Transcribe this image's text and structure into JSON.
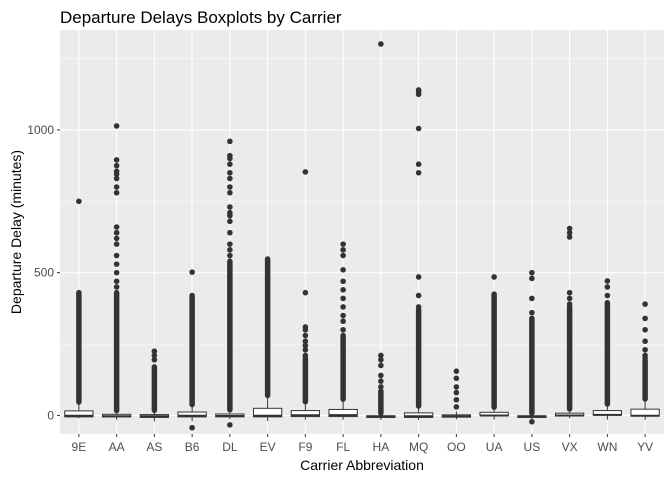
{
  "chart_data": {
    "type": "boxplot",
    "title": "Departure Delays Boxplots by Carrier",
    "xlabel": "Carrier Abbreviation",
    "ylabel": "Departure Delay (minutes)",
    "ylim": [
      -65,
      1350
    ],
    "yticks": [
      0,
      500,
      1000
    ],
    "grid": true,
    "legend": "none",
    "colors": {
      "panel": "#ebebeb",
      "grid_major": "#ffffff",
      "points": "#333333",
      "box_fill": "#ffffff",
      "box_line": "#333333",
      "text": "#4d4d4d",
      "title": "#000000"
    },
    "series": [
      {
        "name": "9E",
        "box": {
          "min": -10,
          "q1": -5,
          "median": -1,
          "q3": 16,
          "max": 47
        },
        "dense_outliers": [
          47,
          430
        ],
        "outliers": [
          750
        ]
      },
      {
        "name": "AA",
        "box": {
          "min": -15,
          "q1": -5,
          "median": -3,
          "q3": 4,
          "max": 17
        },
        "dense_outliers": [
          17,
          430
        ],
        "outliers": [
          450,
          470,
          500,
          530,
          560,
          600,
          620,
          640,
          660,
          780,
          800,
          830,
          845,
          855,
          875,
          895,
          1014
        ]
      },
      {
        "name": "AS",
        "box": {
          "min": -21,
          "q1": -7,
          "median": -3,
          "q3": 3,
          "max": 18
        },
        "dense_outliers": [
          18,
          170
        ],
        "outliers": [
          195,
          210,
          225
        ]
      },
      {
        "name": "B6",
        "box": {
          "min": -20,
          "q1": -5,
          "median": -1,
          "q3": 12,
          "max": 38
        },
        "dense_outliers": [
          38,
          420
        ],
        "outliers": [
          -43,
          502
        ]
      },
      {
        "name": "DL",
        "box": {
          "min": -13,
          "q1": -5,
          "median": -2,
          "q3": 5,
          "max": 20
        },
        "dense_outliers": [
          20,
          540
        ],
        "outliers": [
          -33,
          560,
          580,
          600,
          640,
          680,
          700,
          710,
          730,
          780,
          800,
          830,
          850,
          880,
          900,
          910,
          960
        ]
      },
      {
        "name": "EV",
        "box": {
          "min": -20,
          "q1": -5,
          "median": -1,
          "q3": 25,
          "max": 70
        },
        "dense_outliers": [
          70,
          548
        ]
      },
      {
        "name": "F9",
        "box": {
          "min": -15,
          "q1": -4,
          "median": 0.5,
          "q3": 17,
          "max": 48
        },
        "dense_outliers": [
          48,
          200
        ],
        "outliers": [
          210,
          230,
          245,
          260,
          280,
          300,
          310,
          430,
          853
        ]
      },
      {
        "name": "FL",
        "box": {
          "min": -15,
          "q1": -4,
          "median": 1,
          "q3": 21,
          "max": 57
        },
        "dense_outliers": [
          57,
          280
        ],
        "outliers": [
          300,
          330,
          350,
          380,
          410,
          440,
          470,
          510,
          560,
          580,
          600
        ]
      },
      {
        "name": "HA",
        "box": {
          "min": -16,
          "q1": -7,
          "median": -4,
          "q3": -1,
          "max": 8
        },
        "dense_outliers": [
          8,
          85
        ],
        "outliers": [
          100,
          120,
          140,
          175,
          195,
          210,
          1301
        ]
      },
      {
        "name": "MQ",
        "box": {
          "min": -16,
          "q1": -7,
          "median": -3,
          "q3": 9,
          "max": 33
        },
        "dense_outliers": [
          33,
          370
        ],
        "outliers": [
          380,
          420,
          485,
          850,
          880,
          1005,
          1125,
          1135,
          1140
        ]
      },
      {
        "name": "OO",
        "box": {
          "min": -14,
          "q1": -6,
          "median": -3,
          "q3": 2,
          "max": 14
        },
        "dense_outliers": [],
        "outliers": [
          30,
          55,
          80,
          100,
          130,
          155
        ]
      },
      {
        "name": "UA",
        "box": {
          "min": -15,
          "q1": -1,
          "median": 0,
          "q3": 11,
          "max": 29
        },
        "dense_outliers": [
          29,
          425
        ],
        "outliers": [
          485
        ]
      },
      {
        "name": "US",
        "box": {
          "min": -15,
          "q1": -7,
          "median": -4,
          "q3": -1,
          "max": 8
        },
        "dense_outliers": [
          8,
          340
        ],
        "outliers": [
          -22,
          360,
          410,
          480,
          500
        ]
      },
      {
        "name": "VX",
        "box": {
          "min": -10,
          "q1": -2,
          "median": 0,
          "q3": 8,
          "max": 23
        },
        "dense_outliers": [
          23,
          380
        ],
        "outliers": [
          390,
          410,
          430,
          625,
          640,
          655
        ]
      },
      {
        "name": "WN",
        "box": {
          "min": -15,
          "q1": 1,
          "median": 2,
          "q3": 17,
          "max": 40
        },
        "dense_outliers": [
          40,
          395
        ],
        "outliers": [
          420,
          450,
          471
        ]
      },
      {
        "name": "YV",
        "box": {
          "min": -15,
          "q1": -2,
          "median": -1,
          "q3": 22,
          "max": 58
        },
        "dense_outliers": [
          58,
          190
        ],
        "outliers": [
          200,
          210,
          230,
          260,
          300,
          340,
          390
        ]
      }
    ]
  }
}
